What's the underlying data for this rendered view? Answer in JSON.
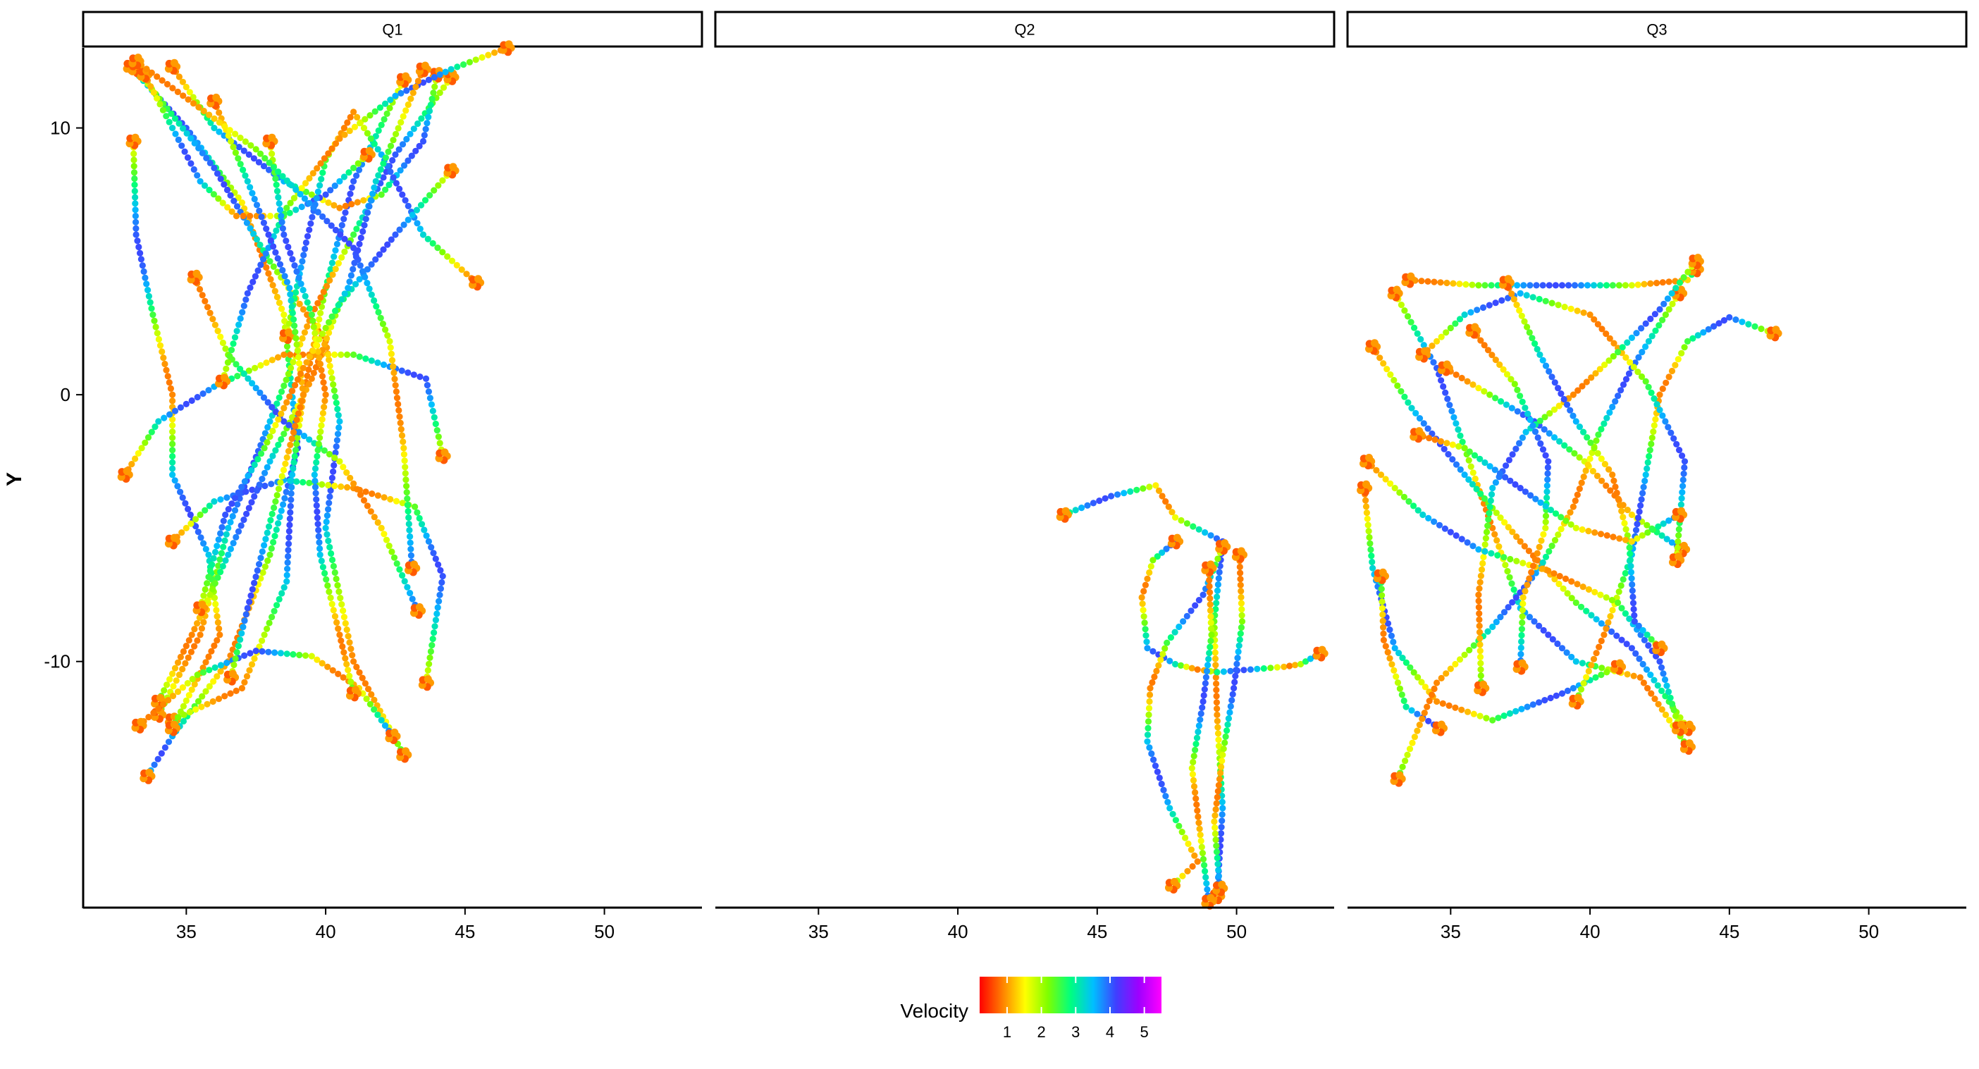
{
  "chart_data": {
    "type": "scatter",
    "facets": [
      "Q1",
      "Q2",
      "Q3"
    ],
    "ylabel": "Y",
    "xlabel": "",
    "xlim": [
      31.3,
      53.5
    ],
    "ylim": [
      -19.2,
      13.0
    ],
    "x_ticks": [
      35,
      40,
      45,
      50
    ],
    "y_ticks": [
      10,
      0,
      -10
    ],
    "y_tick_labels": [
      "10",
      "0",
      "-10"
    ],
    "legend": {
      "title": "Velocity",
      "placement": "bottom",
      "ticks": [
        1,
        2,
        3,
        4,
        5
      ],
      "range": [
        0.2,
        5.5
      ],
      "colors": [
        "#ff0000",
        "#ff7f00",
        "#ffff00",
        "#7fff00",
        "#00ff7f",
        "#00bfff",
        "#3f3fff",
        "#9f00ff",
        "#ff00ff"
      ]
    },
    "tracks": {
      "Q1": [
        [
          [
            33,
            12.3
          ],
          [
            35,
            10
          ],
          [
            37,
            7.2
          ],
          [
            38.5,
            3
          ],
          [
            39,
            -2
          ],
          [
            38,
            -6
          ],
          [
            36.5,
            -10
          ],
          [
            34.5,
            -12.8
          ],
          [
            33.6,
            -14.3
          ]
        ],
        [
          [
            33.2,
            12.2
          ],
          [
            36,
            8.5
          ],
          [
            38,
            5
          ],
          [
            40,
            2
          ],
          [
            40.5,
            -1
          ],
          [
            40,
            -5
          ],
          [
            41,
            -10
          ],
          [
            42.8,
            -13.5
          ]
        ],
        [
          [
            42.8,
            11.8
          ],
          [
            41,
            8
          ],
          [
            40,
            4
          ],
          [
            39.2,
            0
          ],
          [
            38.8,
            -3
          ],
          [
            38.6,
            -7
          ],
          [
            37,
            -11
          ],
          [
            34.5,
            -12.2
          ]
        ],
        [
          [
            44.5,
            11.9
          ],
          [
            42.5,
            9
          ],
          [
            41,
            6
          ],
          [
            39.5,
            3
          ],
          [
            38,
            -1
          ],
          [
            36.5,
            -5
          ],
          [
            35.5,
            -9
          ],
          [
            34,
            -12
          ]
        ],
        [
          [
            34.5,
            12.3
          ],
          [
            36,
            10
          ],
          [
            38.5,
            8
          ],
          [
            40.5,
            7
          ],
          [
            42,
            7.5
          ],
          [
            43.5,
            9.5
          ],
          [
            44,
            12
          ]
        ],
        [
          [
            33.5,
            12
          ],
          [
            34.5,
            10
          ],
          [
            35.5,
            8
          ],
          [
            36.8,
            6.7
          ],
          [
            38.5,
            6.7
          ],
          [
            40,
            7.5
          ],
          [
            41.5,
            9
          ]
        ],
        [
          [
            33.1,
            9.5
          ],
          [
            33.2,
            6
          ],
          [
            33.8,
            3
          ],
          [
            34.5,
            0
          ],
          [
            34.5,
            -3
          ],
          [
            35.8,
            -6
          ],
          [
            36.2,
            -9
          ],
          [
            34.5,
            -12.5
          ]
        ],
        [
          [
            45.4,
            4.2
          ],
          [
            43.5,
            6
          ],
          [
            42,
            9
          ],
          [
            41,
            10.6
          ],
          [
            40,
            8.8
          ],
          [
            39.3,
            5.7
          ],
          [
            38.6,
            2.2
          ]
        ],
        [
          [
            32.8,
            -3
          ],
          [
            34,
            -1
          ],
          [
            36,
            0.3
          ],
          [
            38.5,
            1.5
          ],
          [
            41,
            1.5
          ],
          [
            43.6,
            0.6
          ],
          [
            44.2,
            -2.3
          ]
        ],
        [
          [
            34.5,
            -5.5
          ],
          [
            36,
            -4
          ],
          [
            38.5,
            -3.2
          ],
          [
            41,
            -3.5
          ],
          [
            43.2,
            -4.2
          ],
          [
            44.2,
            -6.8
          ],
          [
            43.6,
            -10.8
          ]
        ],
        [
          [
            44.5,
            8.4
          ],
          [
            42.5,
            6
          ],
          [
            40.5,
            3.4
          ],
          [
            39.5,
            0.6
          ],
          [
            38,
            -2.5
          ],
          [
            36.5,
            -6
          ],
          [
            35.2,
            -9
          ],
          [
            34,
            -11.5
          ]
        ],
        [
          [
            33.3,
            -12.4
          ],
          [
            35.4,
            -10.5
          ],
          [
            37.5,
            -9.6
          ],
          [
            39.5,
            -9.8
          ],
          [
            41.2,
            -11
          ],
          [
            42.4,
            -12.8
          ]
        ],
        [
          [
            35.3,
            4.4
          ],
          [
            36.5,
            1.5
          ],
          [
            38.5,
            -1
          ],
          [
            40.5,
            -2.5
          ],
          [
            42,
            -5
          ],
          [
            43.3,
            -8.1
          ]
        ],
        [
          [
            46.5,
            13
          ],
          [
            44.5,
            12.2
          ],
          [
            42.5,
            11.2
          ],
          [
            40.5,
            9.6
          ],
          [
            38.6,
            7
          ],
          [
            37.2,
            3.8
          ],
          [
            36.3,
            0.5
          ]
        ],
        [
          [
            38,
            9.5
          ],
          [
            38.5,
            6
          ],
          [
            39.5,
            3
          ],
          [
            40,
            0
          ],
          [
            39.6,
            -3
          ],
          [
            39.8,
            -6
          ],
          [
            40.5,
            -9
          ],
          [
            41,
            -11.2
          ]
        ],
        [
          [
            36,
            11
          ],
          [
            37.2,
            8
          ],
          [
            38.7,
            4
          ],
          [
            39.2,
            0
          ],
          [
            38.2,
            -4
          ],
          [
            37.2,
            -8
          ],
          [
            36.6,
            -10.6
          ]
        ],
        [
          [
            33.2,
            12.5
          ],
          [
            37.5,
            9.2
          ],
          [
            41,
            5.5
          ],
          [
            42.3,
            2
          ],
          [
            42.8,
            -2
          ],
          [
            43.1,
            -6.5
          ]
        ],
        [
          [
            43.5,
            12.2
          ],
          [
            41.8,
            8
          ],
          [
            40.8,
            4
          ],
          [
            39.2,
            1
          ],
          [
            37.8,
            -2
          ],
          [
            36.4,
            -4.5
          ],
          [
            35.5,
            -8
          ]
        ]
      ],
      "Q2": [
        [
          [
            43.8,
            -4.5
          ],
          [
            45.5,
            -3.8
          ],
          [
            47.1,
            -3.4
          ],
          [
            47.8,
            -4.6
          ],
          [
            49.5,
            -5.5
          ],
          [
            49.2,
            -8.5
          ],
          [
            49.3,
            -12
          ],
          [
            49.5,
            -15.5
          ],
          [
            49.3,
            -18.8
          ]
        ],
        [
          [
            47.8,
            -5.5
          ],
          [
            47,
            -6.2
          ],
          [
            46.6,
            -7.6
          ],
          [
            46.8,
            -9.5
          ],
          [
            47.8,
            -10.1
          ],
          [
            48.6,
            -10.3
          ],
          [
            49.3,
            -10.4
          ],
          [
            50.5,
            -10.3
          ],
          [
            51.7,
            -10.2
          ],
          [
            52.3,
            -10.1
          ],
          [
            53,
            -9.7
          ]
        ],
        [
          [
            49.5,
            -5.7
          ],
          [
            48.8,
            -7.5
          ],
          [
            47.5,
            -9.3
          ],
          [
            46.9,
            -11
          ],
          [
            46.8,
            -13
          ],
          [
            47.6,
            -15.5
          ],
          [
            48.6,
            -17.5
          ],
          [
            47.7,
            -18.4
          ]
        ],
        [
          [
            50.1,
            -6
          ],
          [
            50.2,
            -8.5
          ],
          [
            49.9,
            -11
          ],
          [
            49.5,
            -13.5
          ],
          [
            49.2,
            -16
          ],
          [
            49.4,
            -18.5
          ]
        ],
        [
          [
            49,
            -6.5
          ],
          [
            49.1,
            -9
          ],
          [
            48.8,
            -11.5
          ],
          [
            48.4,
            -14
          ],
          [
            48.7,
            -16.5
          ],
          [
            49,
            -19
          ]
        ]
      ],
      "Q3": [
        [
          [
            33.5,
            4.3
          ],
          [
            36,
            4.1
          ],
          [
            39,
            4.1
          ],
          [
            41.5,
            4.1
          ],
          [
            43.5,
            4.3
          ],
          [
            43.8,
            4.7
          ]
        ],
        [
          [
            33,
            3.8
          ],
          [
            34.5,
            1
          ],
          [
            35.5,
            -2
          ],
          [
            36.5,
            -5
          ],
          [
            37.5,
            -8
          ],
          [
            39.5,
            -10
          ],
          [
            41.8,
            -10.6
          ],
          [
            43.5,
            -13.2
          ]
        ],
        [
          [
            32.2,
            1.8
          ],
          [
            33.6,
            -0.5
          ],
          [
            35.5,
            -3
          ],
          [
            37.5,
            -5.5
          ],
          [
            39.5,
            -7.8
          ],
          [
            41.5,
            -9.5
          ],
          [
            43.5,
            -12.5
          ]
        ],
        [
          [
            31.9,
            -3.5
          ],
          [
            32.2,
            -6.5
          ],
          [
            33,
            -9.5
          ],
          [
            34.5,
            -11.5
          ],
          [
            36.5,
            -12.2
          ],
          [
            39,
            -11.2
          ],
          [
            41,
            -10.2
          ]
        ],
        [
          [
            32.5,
            -6.8
          ],
          [
            32.6,
            -9.2
          ],
          [
            33.4,
            -11.7
          ],
          [
            34.6,
            -12.5
          ]
        ],
        [
          [
            34.8,
            1
          ],
          [
            36.4,
            0
          ],
          [
            38,
            -1
          ],
          [
            39.8,
            -2.5
          ],
          [
            41.5,
            -4.5
          ],
          [
            43.3,
            -5.8
          ]
        ],
        [
          [
            43.2,
            3.8
          ],
          [
            41.5,
            1
          ],
          [
            40.3,
            -1.5
          ],
          [
            39.4,
            -4.2
          ],
          [
            38.2,
            -6.5
          ],
          [
            36.5,
            -8.7
          ],
          [
            34.5,
            -10.8
          ],
          [
            33.1,
            -14.4
          ]
        ],
        [
          [
            46.6,
            2.3
          ],
          [
            45,
            2.9
          ],
          [
            43.5,
            2
          ],
          [
            42.5,
            0
          ],
          [
            42,
            -3
          ],
          [
            41.5,
            -6
          ],
          [
            40.5,
            -9
          ],
          [
            39.5,
            -11.5
          ]
        ],
        [
          [
            34,
            1.5
          ],
          [
            35.5,
            3
          ],
          [
            37.5,
            3.8
          ],
          [
            40,
            3
          ],
          [
            42,
            0.5
          ],
          [
            43.4,
            -2.5
          ],
          [
            43.1,
            -6.2
          ]
        ],
        [
          [
            43.8,
            5
          ],
          [
            42.5,
            3.2
          ],
          [
            41,
            1.6
          ],
          [
            39.4,
            0
          ],
          [
            37.7,
            -1.4
          ],
          [
            36.5,
            -3.5
          ],
          [
            36,
            -7.5
          ],
          [
            36.1,
            -11
          ]
        ],
        [
          [
            32,
            -2.5
          ],
          [
            34,
            -4.5
          ],
          [
            36,
            -5.8
          ],
          [
            38.5,
            -6.6
          ],
          [
            41,
            -7.8
          ],
          [
            42.5,
            -10
          ],
          [
            43.2,
            -12.5
          ]
        ],
        [
          [
            35.8,
            2.4
          ],
          [
            37.3,
            0.4
          ],
          [
            38.5,
            -2.5
          ],
          [
            38.4,
            -5
          ],
          [
            37.6,
            -7.6
          ],
          [
            37.5,
            -10.2
          ]
        ],
        [
          [
            37,
            4.2
          ],
          [
            38.2,
            1.5
          ],
          [
            39.5,
            -1
          ],
          [
            40.8,
            -3
          ],
          [
            41.4,
            -5.5
          ],
          [
            41.6,
            -8.5
          ],
          [
            42.5,
            -9.5
          ]
        ],
        [
          [
            33.8,
            -1.5
          ],
          [
            35.5,
            -2
          ],
          [
            37.5,
            -3.5
          ],
          [
            39.5,
            -5
          ],
          [
            41.5,
            -5.5
          ],
          [
            43.2,
            -4.5
          ]
        ]
      ]
    }
  }
}
